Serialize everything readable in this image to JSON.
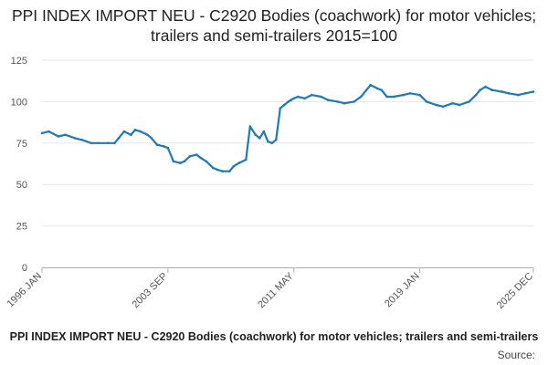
{
  "chart_data": {
    "type": "line",
    "title": "PPI INDEX IMPORT NEU - C2920 Bodies (coachwork) for motor vehicles; trailers and semi-trailers 2015=100",
    "xlabel": "",
    "ylabel": "",
    "ylim": [
      0,
      125
    ],
    "yticks": [
      0,
      25,
      50,
      75,
      100,
      125
    ],
    "xlim": [
      "1996-01",
      "2025-12"
    ],
    "xticks": [
      "1996 JAN",
      "2003 SEP",
      "2011 MAY",
      "2019 JAN",
      "2025 DEC"
    ],
    "grid": "horizontal",
    "color": "#1f7ab8",
    "series": [
      {
        "name": "PPI INDEX IMPORT NEU - C2920 Bodies (coachwork) for motor vehicles; trailers and semi-trailers",
        "x": [
          "1996-01",
          "1996-06",
          "1997-01",
          "1997-06",
          "1998-01",
          "1998-06",
          "1999-01",
          "1999-06",
          "2000-01",
          "2000-06",
          "2000-09",
          "2001-01",
          "2001-06",
          "2001-09",
          "2002-01",
          "2002-06",
          "2002-09",
          "2003-01",
          "2003-06",
          "2003-09",
          "2004-01",
          "2004-06",
          "2004-09",
          "2005-01",
          "2005-06",
          "2005-09",
          "2006-01",
          "2006-06",
          "2006-09",
          "2007-01",
          "2007-06",
          "2007-09",
          "2008-01",
          "2008-06",
          "2008-09",
          "2009-01",
          "2009-04",
          "2009-07",
          "2009-10",
          "2010-01",
          "2010-04",
          "2010-07",
          "2010-10",
          "2011-01",
          "2011-03",
          "2011-05",
          "2011-08",
          "2012-01",
          "2012-06",
          "2013-01",
          "2013-06",
          "2014-01",
          "2014-06",
          "2015-01",
          "2015-06",
          "2016-01",
          "2016-06",
          "2016-09",
          "2017-01",
          "2017-06",
          "2018-01",
          "2018-06",
          "2019-01",
          "2019-06",
          "2020-01",
          "2020-06",
          "2021-01",
          "2021-06",
          "2022-01",
          "2022-06",
          "2022-09",
          "2023-01",
          "2023-06",
          "2024-01",
          "2024-06",
          "2025-01",
          "2025-06",
          "2025-12"
        ],
        "values": [
          81,
          82,
          79,
          80,
          78,
          77,
          75,
          75,
          75,
          75,
          78,
          82,
          80,
          83,
          82,
          80,
          78,
          74,
          73,
          72,
          64,
          63,
          64,
          67,
          68,
          66,
          64,
          60,
          59,
          58,
          58,
          61,
          63,
          65,
          85,
          80,
          78,
          82,
          76,
          75,
          77,
          96,
          98,
          100,
          101,
          102,
          103,
          102,
          104,
          103,
          101,
          100,
          99,
          100,
          103,
          110,
          108,
          107,
          103,
          103,
          104,
          105,
          104,
          100,
          98,
          97,
          99,
          98,
          100,
          104,
          107,
          109,
          107,
          106,
          105,
          104,
          105,
          106
        ]
      }
    ]
  },
  "source_label": "Source:"
}
